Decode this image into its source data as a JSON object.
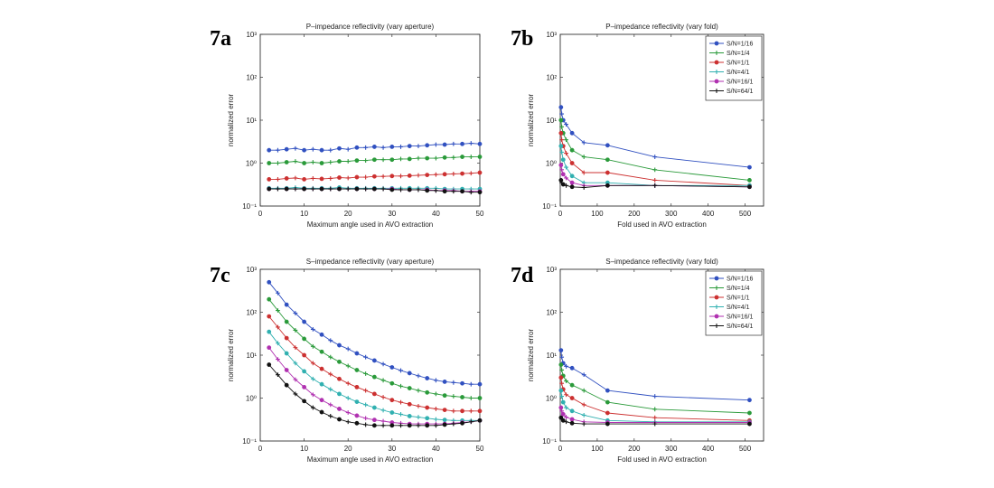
{
  "chart_data": [
    {
      "panel": "7a",
      "type": "line",
      "title": "P–impedance reflectivity (vary aperture)",
      "xlabel": "Maximum angle used in AVO extraction",
      "ylabel": "normalized error",
      "xlim": [
        0,
        50
      ],
      "ylim": [
        0.1,
        1000
      ],
      "yscale": "log",
      "x_ticks": [
        "0",
        "10",
        "20",
        "30",
        "40",
        "50"
      ],
      "y_ticks": [
        "10⁻¹",
        "10⁰",
        "10¹",
        "10²",
        "10³"
      ],
      "x": [
        2,
        4,
        6,
        8,
        10,
        12,
        14,
        16,
        18,
        20,
        22,
        24,
        26,
        28,
        30,
        32,
        34,
        36,
        38,
        40,
        42,
        44,
        46,
        48,
        50
      ],
      "series": [
        {
          "color": "#3050c0",
          "values": [
            2.0,
            2.0,
            2.1,
            2.2,
            2.0,
            2.1,
            2.0,
            2.0,
            2.2,
            2.1,
            2.3,
            2.3,
            2.4,
            2.3,
            2.4,
            2.4,
            2.5,
            2.5,
            2.6,
            2.7,
            2.7,
            2.8,
            2.8,
            2.9,
            2.8
          ]
        },
        {
          "color": "#2a9a3a",
          "values": [
            1.0,
            1.0,
            1.05,
            1.1,
            1.0,
            1.05,
            1.0,
            1.05,
            1.1,
            1.1,
            1.15,
            1.15,
            1.2,
            1.2,
            1.2,
            1.25,
            1.25,
            1.3,
            1.3,
            1.3,
            1.35,
            1.35,
            1.4,
            1.4,
            1.4
          ]
        },
        {
          "color": "#cc3030",
          "values": [
            0.42,
            0.42,
            0.44,
            0.45,
            0.42,
            0.44,
            0.43,
            0.44,
            0.46,
            0.45,
            0.47,
            0.47,
            0.49,
            0.49,
            0.5,
            0.5,
            0.51,
            0.52,
            0.53,
            0.54,
            0.55,
            0.56,
            0.57,
            0.58,
            0.6
          ]
        },
        {
          "color": "#30b0b0",
          "values": [
            0.26,
            0.26,
            0.26,
            0.27,
            0.26,
            0.26,
            0.26,
            0.26,
            0.27,
            0.26,
            0.26,
            0.26,
            0.26,
            0.26,
            0.26,
            0.26,
            0.26,
            0.26,
            0.26,
            0.26,
            0.25,
            0.25,
            0.25,
            0.25,
            0.25
          ]
        },
        {
          "color": "#b030b0",
          "values": [
            0.25,
            0.25,
            0.25,
            0.25,
            0.25,
            0.25,
            0.25,
            0.25,
            0.25,
            0.25,
            0.25,
            0.25,
            0.25,
            0.25,
            0.25,
            0.24,
            0.24,
            0.24,
            0.24,
            0.23,
            0.23,
            0.23,
            0.22,
            0.22,
            0.22
          ]
        },
        {
          "color": "#111111",
          "values": [
            0.25,
            0.25,
            0.25,
            0.25,
            0.25,
            0.25,
            0.25,
            0.25,
            0.25,
            0.25,
            0.25,
            0.25,
            0.25,
            0.25,
            0.24,
            0.24,
            0.24,
            0.24,
            0.23,
            0.23,
            0.22,
            0.22,
            0.22,
            0.21,
            0.21
          ]
        }
      ]
    },
    {
      "panel": "7b",
      "type": "line",
      "title": "P–impedance reflectivity (vary fold)",
      "xlabel": "Fold used in AVO extraction",
      "ylabel": "normalized error",
      "xlim": [
        0,
        550
      ],
      "ylim": [
        0.1,
        1000
      ],
      "yscale": "log",
      "x_ticks": [
        "0",
        "100",
        "200",
        "300",
        "400",
        "500"
      ],
      "y_ticks": [
        "10⁻¹",
        "10⁰",
        "10¹",
        "10²",
        "10³"
      ],
      "x": [
        2,
        4,
        8,
        16,
        32,
        64,
        128,
        256,
        512
      ],
      "legend": [
        "S/N=1/16",
        "S/N=1/4",
        "S/N=1/1",
        "S/N=4/1",
        "S/N=16/1",
        "S/N=64/1"
      ],
      "legend_position": "top-right",
      "series": [
        {
          "name": "S/N=1/16",
          "color": "#3050c0",
          "values": [
            20,
            14,
            10,
            8,
            5,
            3.0,
            2.6,
            1.4,
            0.8
          ]
        },
        {
          "name": "S/N=1/4",
          "color": "#2a9a3a",
          "values": [
            10,
            7,
            5,
            3.5,
            2.0,
            1.4,
            1.2,
            0.7,
            0.4
          ]
        },
        {
          "name": "S/N=1/1",
          "color": "#cc3030",
          "values": [
            5,
            3.5,
            2.5,
            1.7,
            1.0,
            0.6,
            0.6,
            0.4,
            0.3
          ]
        },
        {
          "name": "S/N=4/1",
          "color": "#30b0b0",
          "values": [
            2.5,
            1.8,
            1.2,
            0.8,
            0.5,
            0.35,
            0.35,
            0.3,
            0.3
          ]
        },
        {
          "name": "S/N=16/1",
          "color": "#b030b0",
          "values": [
            0.9,
            0.7,
            0.55,
            0.45,
            0.35,
            0.3,
            0.3,
            0.3,
            0.28
          ]
        },
        {
          "name": "S/N=64/1",
          "color": "#111111",
          "values": [
            0.4,
            0.35,
            0.32,
            0.3,
            0.28,
            0.27,
            0.3,
            0.3,
            0.28
          ]
        }
      ]
    },
    {
      "panel": "7c",
      "type": "line",
      "title": "S–impedance reflectivity (vary aperture)",
      "xlabel": "Maximum angle used in AVO extraction",
      "ylabel": "normalized error",
      "xlim": [
        0,
        50
      ],
      "ylim": [
        0.1,
        1000
      ],
      "yscale": "log",
      "x_ticks": [
        "0",
        "10",
        "20",
        "30",
        "40",
        "50"
      ],
      "y_ticks": [
        "10⁻¹",
        "10⁰",
        "10¹",
        "10²",
        "10³"
      ],
      "x": [
        2,
        4,
        6,
        8,
        10,
        12,
        14,
        16,
        18,
        20,
        22,
        24,
        26,
        28,
        30,
        32,
        34,
        36,
        38,
        40,
        42,
        44,
        46,
        48,
        50
      ],
      "series": [
        {
          "color": "#3050c0",
          "values": [
            500,
            280,
            150,
            95,
            60,
            40,
            30,
            22,
            17,
            14,
            11,
            9,
            7.5,
            6.2,
            5.2,
            4.4,
            3.8,
            3.3,
            2.9,
            2.6,
            2.4,
            2.3,
            2.2,
            2.1,
            2.1
          ]
        },
        {
          "color": "#2a9a3a",
          "values": [
            200,
            110,
            60,
            38,
            24,
            16,
            12,
            9,
            7,
            5.6,
            4.5,
            3.7,
            3.1,
            2.6,
            2.2,
            1.9,
            1.7,
            1.5,
            1.35,
            1.25,
            1.15,
            1.1,
            1.05,
            1.0,
            1.0
          ]
        },
        {
          "color": "#cc3030",
          "values": [
            80,
            45,
            25,
            15,
            10,
            6.5,
            4.8,
            3.6,
            2.8,
            2.2,
            1.8,
            1.5,
            1.25,
            1.05,
            0.9,
            0.8,
            0.72,
            0.65,
            0.6,
            0.56,
            0.53,
            0.5,
            0.5,
            0.5,
            0.5
          ]
        },
        {
          "color": "#30b0b0",
          "values": [
            35,
            19,
            11,
            6.5,
            4.2,
            2.8,
            2.1,
            1.6,
            1.25,
            1.0,
            0.82,
            0.7,
            0.6,
            0.52,
            0.46,
            0.42,
            0.38,
            0.36,
            0.34,
            0.32,
            0.31,
            0.3,
            0.3,
            0.3,
            0.3
          ]
        },
        {
          "color": "#b030b0",
          "values": [
            15,
            8,
            4.5,
            2.7,
            1.8,
            1.2,
            0.9,
            0.7,
            0.56,
            0.46,
            0.39,
            0.34,
            0.31,
            0.29,
            0.27,
            0.26,
            0.25,
            0.25,
            0.25,
            0.25,
            0.25,
            0.26,
            0.27,
            0.28,
            0.3
          ]
        },
        {
          "color": "#111111",
          "values": [
            6,
            3.5,
            2.0,
            1.25,
            0.85,
            0.6,
            0.47,
            0.38,
            0.32,
            0.28,
            0.26,
            0.24,
            0.23,
            0.23,
            0.23,
            0.23,
            0.23,
            0.23,
            0.23,
            0.23,
            0.24,
            0.25,
            0.26,
            0.28,
            0.3
          ]
        }
      ]
    },
    {
      "panel": "7d",
      "type": "line",
      "title": "S–impedance reflectivity (vary fold)",
      "xlabel": "Fold used in AVO extraction",
      "ylabel": "normalized error",
      "xlim": [
        0,
        550
      ],
      "ylim": [
        0.1,
        1000
      ],
      "yscale": "log",
      "x_ticks": [
        "0",
        "100",
        "200",
        "300",
        "400",
        "500"
      ],
      "y_ticks": [
        "10⁻¹",
        "10⁰",
        "10¹",
        "10²",
        "10³"
      ],
      "x": [
        2,
        4,
        8,
        16,
        32,
        64,
        128,
        256,
        512
      ],
      "legend": [
        "S/N=1/16",
        "S/N=1/4",
        "S/N=1/1",
        "S/N=4/1",
        "S/N=16/1",
        "S/N=64/1"
      ],
      "legend_position": "top-right",
      "series": [
        {
          "name": "S/N=1/16",
          "color": "#3050c0",
          "values": [
            13,
            9,
            6.5,
            5.5,
            5,
            3.5,
            1.5,
            1.1,
            0.9
          ]
        },
        {
          "name": "S/N=1/4",
          "color": "#2a9a3a",
          "values": [
            6,
            4.5,
            3.3,
            2.5,
            2,
            1.5,
            0.8,
            0.55,
            0.45
          ]
        },
        {
          "name": "S/N=1/1",
          "color": "#cc3030",
          "values": [
            3,
            2.2,
            1.6,
            1.2,
            1.0,
            0.7,
            0.45,
            0.35,
            0.3
          ]
        },
        {
          "name": "S/N=4/1",
          "color": "#30b0b0",
          "values": [
            1.5,
            1.1,
            0.8,
            0.6,
            0.5,
            0.4,
            0.3,
            0.28,
            0.28
          ]
        },
        {
          "name": "S/N=16/1",
          "color": "#b030b0",
          "values": [
            0.6,
            0.5,
            0.42,
            0.36,
            0.32,
            0.28,
            0.27,
            0.27,
            0.27
          ]
        },
        {
          "name": "S/N=64/1",
          "color": "#111111",
          "values": [
            0.35,
            0.32,
            0.3,
            0.28,
            0.26,
            0.25,
            0.25,
            0.25,
            0.25
          ]
        }
      ]
    }
  ]
}
